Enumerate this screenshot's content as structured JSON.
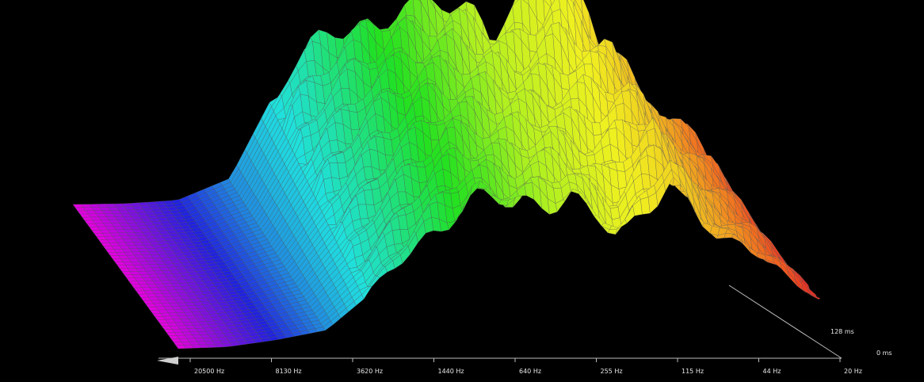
{
  "chart_data": {
    "type": "waterfall-3d",
    "background": "#000000",
    "x_axis": {
      "tick_labels": [
        "20500 Hz",
        "8130 Hz",
        "3620 Hz",
        "1440 Hz",
        "640 Hz",
        "255 Hz",
        "115 Hz",
        "44 Hz",
        "20 Hz"
      ],
      "direction": "high-to-low frequency, left to right"
    },
    "depth_axis": {
      "tick_labels": [
        "128 ms",
        "0 ms"
      ]
    },
    "grid": false,
    "color_map": [
      "#e000e0",
      "#2020e0",
      "#20e0e0",
      "#20e020",
      "#b0f020",
      "#f0f020",
      "#f0a020",
      "#f02020"
    ],
    "front_profile": [
      0.0,
      0.0,
      0.02,
      0.05,
      0.2,
      0.4,
      0.55,
      0.5,
      0.55,
      0.35,
      0.6,
      0.35,
      0.25,
      0.1
    ],
    "back_profile": [
      0.0,
      0.02,
      0.05,
      0.15,
      0.55,
      0.72,
      0.82,
      0.86,
      0.8,
      1.0,
      0.8,
      0.55,
      0.42,
      0.1
    ]
  }
}
